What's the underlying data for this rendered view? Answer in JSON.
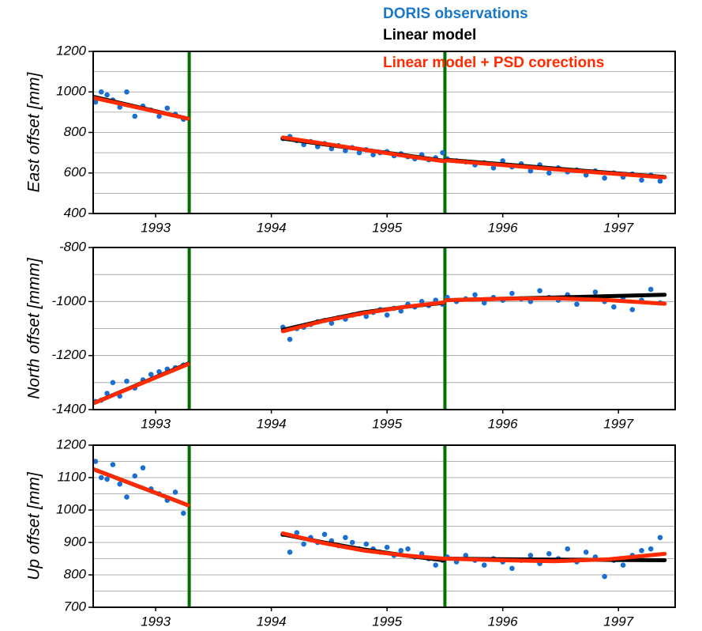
{
  "chart_data": [
    {
      "type": "scatter",
      "ylabel": "East offset [mm]",
      "xlim": [
        1992.46,
        1997.49
      ],
      "xticks": [
        1993,
        1994,
        1995,
        1996,
        1997
      ],
      "ylim": [
        400,
        1200
      ],
      "yticks": [
        400,
        600,
        800,
        1000,
        1200
      ],
      "ygrid": [
        500,
        600,
        700,
        800,
        900,
        1000,
        1100
      ],
      "breaks": [
        1993.29,
        1995.5
      ],
      "break_color": "#007000",
      "series": [
        {
          "name": "DORIS observations",
          "color": "#1a6fd1",
          "style": "points",
          "x": [
            1992.48,
            1992.53,
            1992.58,
            1992.63,
            1992.69,
            1992.75,
            1992.82,
            1992.89,
            1992.96,
            1993.03,
            1993.1,
            1993.17,
            1993.24,
            1994.1,
            1994.16,
            1994.22,
            1994.28,
            1994.34,
            1994.4,
            1994.46,
            1994.52,
            1994.58,
            1994.64,
            1994.7,
            1994.76,
            1994.82,
            1994.88,
            1994.94,
            1995.0,
            1995.06,
            1995.12,
            1995.18,
            1995.24,
            1995.3,
            1995.36,
            1995.42,
            1995.48,
            1995.52,
            1995.6,
            1995.68,
            1995.76,
            1995.84,
            1995.92,
            1996.0,
            1996.08,
            1996.16,
            1996.24,
            1996.32,
            1996.4,
            1996.48,
            1996.56,
            1996.64,
            1996.72,
            1996.8,
            1996.88,
            1996.96,
            1997.04,
            1997.12,
            1997.2,
            1997.28,
            1997.36
          ],
          "values": [
            950,
            1000,
            985,
            960,
            925,
            1000,
            880,
            930,
            910,
            880,
            920,
            890,
            865,
            770,
            780,
            760,
            740,
            755,
            730,
            745,
            720,
            735,
            710,
            725,
            700,
            715,
            690,
            700,
            705,
            685,
            695,
            680,
            670,
            690,
            665,
            675,
            700,
            670,
            660,
            655,
            640,
            650,
            625,
            660,
            630,
            645,
            610,
            640,
            600,
            625,
            605,
            615,
            590,
            610,
            575,
            600,
            580,
            595,
            565,
            590,
            560
          ]
        },
        {
          "name": "Linear model",
          "color": "#000000",
          "style": "line",
          "x": [
            1992.47,
            1993.28,
            null,
            1994.1,
            1994.45,
            1994.8,
            1995.15,
            1995.49,
            null,
            1995.51,
            1995.98,
            1996.45,
            1996.92,
            1997.4
          ],
          "values": [
            975,
            868,
            null,
            770,
            742,
            715,
            688,
            660,
            null,
            665,
            644,
            622,
            601,
            580
          ]
        },
        {
          "name": "Linear model + PSD corections",
          "color": "#ff2a00",
          "style": "line",
          "x": [
            1992.47,
            1993.28,
            null,
            1994.1,
            1994.45,
            1994.8,
            1995.15,
            1995.49,
            null,
            1995.51,
            1995.98,
            1996.45,
            1996.92,
            1997.4
          ],
          "values": [
            970,
            868,
            null,
            775,
            745,
            715,
            685,
            658,
            null,
            662,
            640,
            618,
            598,
            578
          ]
        }
      ]
    },
    {
      "type": "scatter",
      "ylabel": "North offset [mmm]",
      "xlim": [
        1992.46,
        1997.49
      ],
      "xticks": [
        1993,
        1994,
        1995,
        1996,
        1997
      ],
      "ylim": [
        -1400,
        -800
      ],
      "yticks": [
        -1400,
        -1200,
        -1000,
        -800
      ],
      "ygrid": [
        -1300,
        -1200,
        -1100,
        -1000,
        -900
      ],
      "breaks": [
        1993.29,
        1995.5
      ],
      "break_color": "#007000",
      "series": [
        {
          "color": "#1a6fd1",
          "style": "points",
          "x": [
            1992.48,
            1992.53,
            1992.58,
            1992.63,
            1992.69,
            1992.75,
            1992.82,
            1992.89,
            1992.96,
            1993.03,
            1993.1,
            1993.17,
            1993.24,
            1994.1,
            1994.16,
            1994.22,
            1994.28,
            1994.34,
            1994.4,
            1994.46,
            1994.52,
            1994.58,
            1994.64,
            1994.7,
            1994.76,
            1994.82,
            1994.88,
            1994.94,
            1995.0,
            1995.06,
            1995.12,
            1995.18,
            1995.24,
            1995.3,
            1995.36,
            1995.42,
            1995.48,
            1995.52,
            1995.6,
            1995.68,
            1995.76,
            1995.84,
            1995.92,
            1996.0,
            1996.08,
            1996.16,
            1996.24,
            1996.32,
            1996.4,
            1996.48,
            1996.56,
            1996.64,
            1996.72,
            1996.8,
            1996.88,
            1996.96,
            1997.04,
            1997.12,
            1997.2,
            1997.28,
            1997.36
          ],
          "values": [
            -1370,
            -1365,
            -1340,
            -1300,
            -1350,
            -1295,
            -1320,
            -1290,
            -1270,
            -1260,
            -1250,
            -1245,
            -1235,
            -1095,
            -1140,
            -1100,
            -1095,
            -1085,
            -1075,
            -1070,
            -1080,
            -1060,
            -1065,
            -1050,
            -1045,
            -1055,
            -1040,
            -1030,
            -1050,
            -1025,
            -1035,
            -1010,
            -1020,
            -1000,
            -1015,
            -995,
            -1010,
            -985,
            -1000,
            -990,
            -975,
            -1005,
            -985,
            -995,
            -970,
            -990,
            -1000,
            -960,
            -985,
            -995,
            -975,
            -1010,
            -990,
            -965,
            -1000,
            -1020,
            -985,
            -1030,
            -995,
            -955,
            -1005
          ]
        },
        {
          "color": "#000000",
          "style": "line",
          "x": [
            1992.47,
            1993.28,
            null,
            1994.1,
            1994.45,
            1994.8,
            1995.15,
            1995.49,
            null,
            1995.51,
            1995.98,
            1996.45,
            1996.92,
            1997.4
          ],
          "values": [
            -1375,
            -1230,
            null,
            -1105,
            -1070,
            -1040,
            -1020,
            -1005,
            null,
            -995,
            -990,
            -985,
            -980,
            -975
          ]
        },
        {
          "color": "#ff2a00",
          "style": "line",
          "x": [
            1992.47,
            1993.28,
            null,
            1994.1,
            1994.45,
            1994.8,
            1995.15,
            1995.49,
            null,
            1995.51,
            1995.98,
            1996.45,
            1996.92,
            1997.4
          ],
          "values": [
            -1375,
            -1232,
            null,
            -1110,
            -1072,
            -1043,
            -1020,
            -1003,
            null,
            -995,
            -990,
            -988,
            -995,
            -1008
          ]
        }
      ]
    },
    {
      "type": "scatter",
      "ylabel": "Up offset [mm]",
      "xlim": [
        1992.46,
        1997.49
      ],
      "xticks": [
        1993,
        1994,
        1995,
        1996,
        1997
      ],
      "ylim": [
        700,
        1200
      ],
      "yticks": [
        700,
        800,
        900,
        1000,
        1100,
        1200
      ],
      "ygrid": [
        750,
        800,
        850,
        900,
        950,
        1000,
        1050,
        1100,
        1150
      ],
      "breaks": [
        1993.29,
        1995.5
      ],
      "break_color": "#007000",
      "series": [
        {
          "color": "#1a6fd1",
          "style": "points",
          "x": [
            1992.48,
            1992.53,
            1992.58,
            1992.63,
            1992.69,
            1992.75,
            1992.82,
            1992.89,
            1992.96,
            1993.03,
            1993.1,
            1993.17,
            1993.24,
            1994.1,
            1994.16,
            1994.22,
            1994.28,
            1994.34,
            1994.4,
            1994.46,
            1994.52,
            1994.58,
            1994.64,
            1994.7,
            1994.76,
            1994.82,
            1994.88,
            1994.94,
            1995.0,
            1995.06,
            1995.12,
            1995.18,
            1995.24,
            1995.3,
            1995.36,
            1995.42,
            1995.48,
            1995.52,
            1995.6,
            1995.68,
            1995.76,
            1995.84,
            1995.92,
            1996.0,
            1996.08,
            1996.16,
            1996.24,
            1996.32,
            1996.4,
            1996.48,
            1996.56,
            1996.64,
            1996.72,
            1996.8,
            1996.88,
            1996.96,
            1997.04,
            1997.12,
            1997.2,
            1997.28,
            1997.36
          ],
          "values": [
            1150,
            1100,
            1095,
            1140,
            1080,
            1040,
            1105,
            1130,
            1065,
            1050,
            1030,
            1055,
            990,
            925,
            870,
            930,
            895,
            915,
            900,
            925,
            905,
            890,
            915,
            900,
            880,
            895,
            880,
            870,
            885,
            860,
            875,
            880,
            855,
            865,
            850,
            830,
            845,
            855,
            840,
            860,
            845,
            830,
            850,
            840,
            820,
            845,
            860,
            835,
            865,
            850,
            880,
            840,
            870,
            855,
            795,
            845,
            830,
            860,
            875,
            880,
            915
          ]
        },
        {
          "color": "#000000",
          "style": "line",
          "x": [
            1992.47,
            1993.28,
            null,
            1994.1,
            1994.45,
            1994.8,
            1995.15,
            1995.49,
            null,
            1995.51,
            1995.98,
            1996.45,
            1996.92,
            1997.4
          ],
          "values": [
            1125,
            1015,
            null,
            925,
            900,
            878,
            860,
            845,
            null,
            850,
            848,
            847,
            846,
            845
          ]
        },
        {
          "color": "#ff2a00",
          "style": "line",
          "x": [
            1992.47,
            1993.28,
            null,
            1994.1,
            1994.45,
            1994.8,
            1995.15,
            1995.49,
            null,
            1995.51,
            1995.98,
            1996.45,
            1996.92,
            1997.4
          ],
          "values": [
            1125,
            1015,
            null,
            928,
            898,
            875,
            860,
            850,
            null,
            850,
            845,
            842,
            848,
            865
          ]
        }
      ]
    }
  ]
}
